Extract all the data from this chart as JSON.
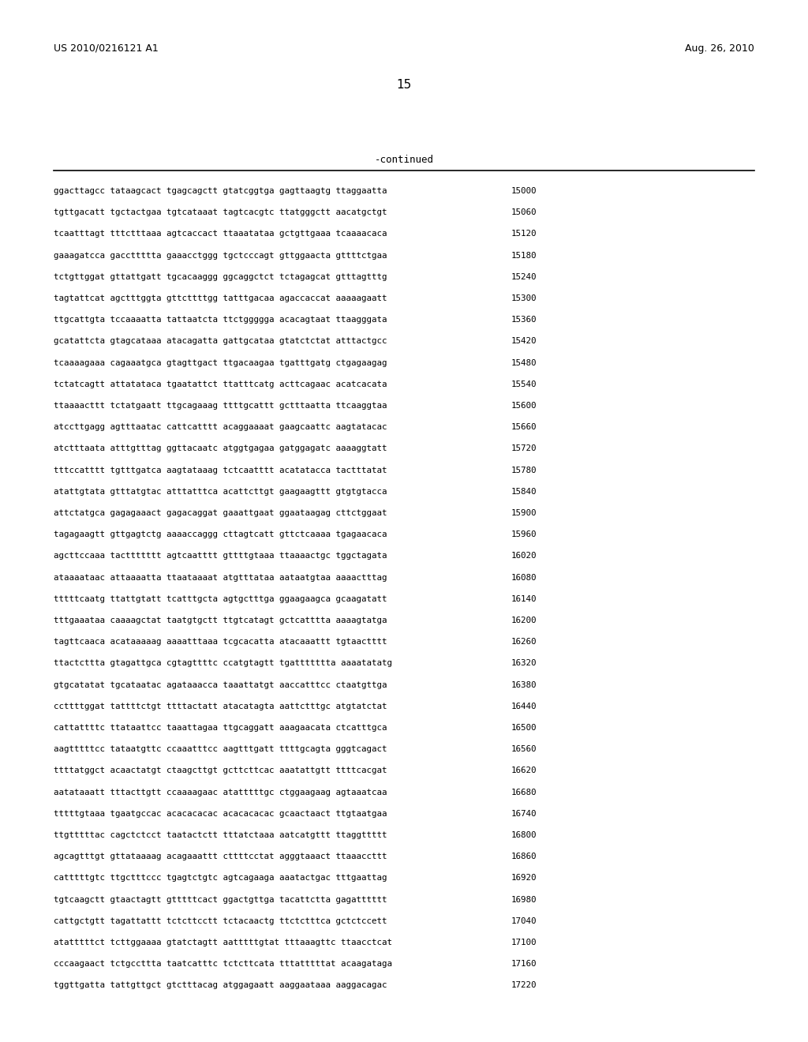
{
  "header_left": "US 2010/0216121 A1",
  "header_right": "Aug. 26, 2010",
  "page_number": "15",
  "continued_label": "-continued",
  "background_color": "#ffffff",
  "text_color": "#000000",
  "sequence_lines": [
    [
      "ggacttagcc tataagcact tgagcagctt gtatcggtga gagttaagtg ttaggaatta",
      "15000"
    ],
    [
      "tgttgacatt tgctactgaa tgtcataaat tagtcacgtc ttatgggctt aacatgctgt",
      "15060"
    ],
    [
      "tcaatttagt tttctttaaa agtcaccact ttaaatataa gctgttgaaa tcaaaacaca",
      "15120"
    ],
    [
      "gaaagatcca gaccttttta gaaacctggg tgctcccagt gttggaacta gttttctgaa",
      "15180"
    ],
    [
      "tctgttggat gttattgatt tgcacaaggg ggcaggctct tctagagcat gtttagtttg",
      "15240"
    ],
    [
      "tagtattcat agctttggta gttcttttgg tatttgacaa agaccaccat aaaaagaatt",
      "15300"
    ],
    [
      "ttgcattgta tccaaaatta tattaatcta ttctggggga acacagtaat ttaagggata",
      "15360"
    ],
    [
      "gcatattcta gtagcataaa atacagatta gattgcataa gtatctctat atttactgcc",
      "15420"
    ],
    [
      "tcaaaagaaa cagaaatgca gtagttgact ttgacaagaa tgatttgatg ctgagaagag",
      "15480"
    ],
    [
      "tctatcagtt attatataca tgaatattct ttatttcatg acttcagaac acatcacata",
      "15540"
    ],
    [
      "ttaaaacttt tctatgaatt ttgcagaaag ttttgcattt gctttaatta ttcaaggtaa",
      "15600"
    ],
    [
      "atccttgagg agtttaatac cattcatttt acaggaaaat gaagcaattc aagtatacac",
      "15660"
    ],
    [
      "atctttaata atttgtttag ggttacaatc atggtgagaa gatggagatc aaaaggtatt",
      "15720"
    ],
    [
      "tttccatttt tgtttgatca aagtataaag tctcaatttt acatatacca tactttatat",
      "15780"
    ],
    [
      "atattgtata gtttatgtac atttatttca acattcttgt gaagaagttt gtgtgtacca",
      "15840"
    ],
    [
      "attctatgca gagagaaact gagacaggat gaaattgaat ggaataagag cttctggaat",
      "15900"
    ],
    [
      "tagagaagtt gttgagtctg aaaaccaggg cttagtcatt gttctcaaaa tgagaacaca",
      "15960"
    ],
    [
      "agcttccaaa tacttttttt agtcaatttt gttttgtaaa ttaaaactgc tggctagata",
      "16020"
    ],
    [
      "ataaaataac attaaaatta ttaataaaat atgtttataa aataatgtaa aaaactttag",
      "16080"
    ],
    [
      "tttttcaatg ttattgtatt tcatttgcta agtgctttga ggaagaagca gcaagatatt",
      "16140"
    ],
    [
      "tttgaaataa caaaagctat taatgtgctt ttgtcatagt gctcatttta aaaagtatga",
      "16200"
    ],
    [
      "tagttcaaca acataaaaag aaaatttaaa tcgcacatta atacaaattt tgtaactttt",
      "16260"
    ],
    [
      "ttactcttta gtagattgca cgtagttttc ccatgtagtt tgattttttta aaaatatatg",
      "16320"
    ],
    [
      "gtgcatatat tgcataatac agataaacca taaattatgt aaccatttcc ctaatgttga",
      "16380"
    ],
    [
      "ccttttggat tattttctgt ttttactatt atacatagta aattctttgc atgtatctat",
      "16440"
    ],
    [
      "cattattttc ttataattcc taaattagaa ttgcaggatt aaagaacata ctcatttgca",
      "16500"
    ],
    [
      "aagtttttcc tataatgttc ccaaatttcc aagtttgatt ttttgcagta gggtcagact",
      "16560"
    ],
    [
      "ttttatggct acaactatgt ctaagcttgt gcttcttcac aaatattgtt ttttcacgat",
      "16620"
    ],
    [
      "aatataaatt tttacttgtt ccaaaagaac atatttttgc ctggaagaag agtaaatcaa",
      "16680"
    ],
    [
      "tttttgtaaa tgaatgccac acacacacac acacacacac gcaactaact ttgtaatgaa",
      "16740"
    ],
    [
      "ttgtttttac cagctctcct taatactctt tttatctaaa aatcatgttt ttaggttttt",
      "16800"
    ],
    [
      "agcagtttgt gttataaaag acagaaattt cttttcctat agggtaaact ttaaaccttt",
      "16860"
    ],
    [
      "catttttgtc ttgctttccc tgagtctgtc agtcagaaga aaatactgac tttgaattag",
      "16920"
    ],
    [
      "tgtcaagctt gtaactagtt gtttttcact ggactgttga tacattctta gagatttttt",
      "16980"
    ],
    [
      "cattgctgtt tagattattt tctcttcctt tctacaactg ttctctttca gctctccett",
      "17040"
    ],
    [
      "atatttttct tcttggaaaa gtatctagtt aatttttgtat tttaaagttc ttaacctcat",
      "17100"
    ],
    [
      "cccaagaact tctgccttta taatcatttc tctcttcata tttatttttat acaagataga",
      "17160"
    ],
    [
      "tggttgatta tattgttgct gtctttacag atggagaatt aaggaataaa aaggacagac",
      "17220"
    ]
  ]
}
